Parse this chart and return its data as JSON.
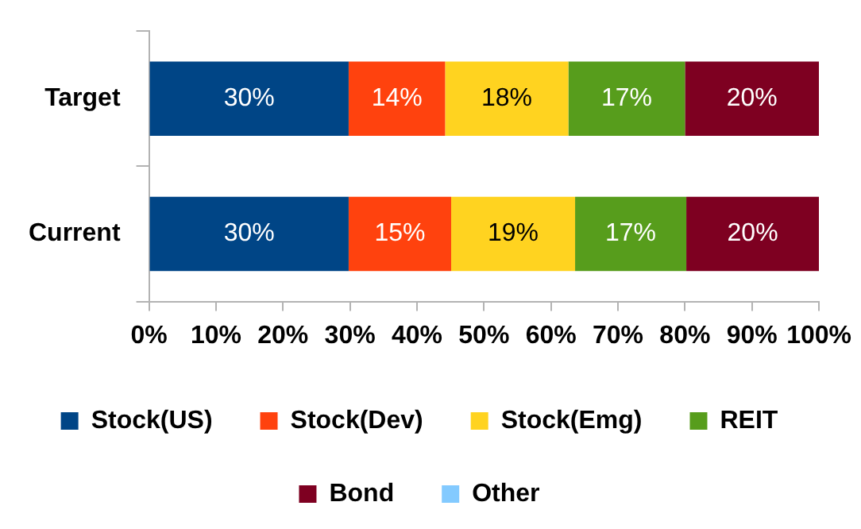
{
  "chart_data": {
    "type": "bar",
    "orientation": "horizontal",
    "stacked": true,
    "categories": [
      "Target",
      "Current"
    ],
    "series": [
      {
        "name": "Stock(US)",
        "color": "#004586",
        "values": [
          29.8,
          29.8
        ],
        "value_labels": [
          "30%",
          "30%"
        ]
      },
      {
        "name": "Stock(Dev)",
        "color": "#ff420e",
        "values": [
          14.4,
          15.3
        ],
        "value_labels": [
          "14%",
          "15%"
        ]
      },
      {
        "name": "Stock(Emg)",
        "color": "#ffd320",
        "values": [
          18.4,
          18.5
        ],
        "value_labels": [
          "18%",
          "19%"
        ]
      },
      {
        "name": "REIT",
        "color": "#579d1c",
        "values": [
          17.4,
          16.6
        ],
        "value_labels": [
          "17%",
          "17%"
        ]
      },
      {
        "name": "Bond",
        "color": "#7e0021",
        "values": [
          20,
          19.8
        ],
        "value_labels": [
          "20%",
          "20%"
        ]
      },
      {
        "name": "Other",
        "color": "#83caff",
        "values": [
          0,
          0
        ],
        "value_labels": [
          null,
          null
        ]
      }
    ],
    "xlim": [
      0,
      100
    ],
    "xticks": [
      {
        "value": 0,
        "label": "0%"
      },
      {
        "value": 10,
        "label": "10%"
      },
      {
        "value": 20,
        "label": "20%"
      },
      {
        "value": 30,
        "label": "30%"
      },
      {
        "value": 40,
        "label": "40%"
      },
      {
        "value": 50,
        "label": "50%"
      },
      {
        "value": 60,
        "label": "60%"
      },
      {
        "value": 70,
        "label": "70%"
      },
      {
        "value": 80,
        "label": "80%"
      },
      {
        "value": 90,
        "label": "90%"
      },
      {
        "value": 100,
        "label": "100%"
      }
    ],
    "grid": false,
    "legend": "bottom"
  }
}
